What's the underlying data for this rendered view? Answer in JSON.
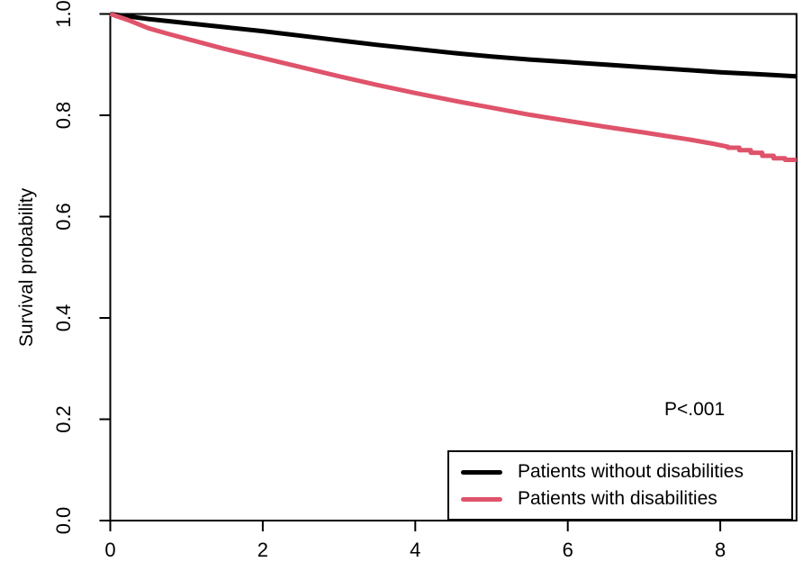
{
  "figure": {
    "background": "#FFFFFF",
    "axis_color": "#000000"
  },
  "chart_data": {
    "type": "line",
    "subtype": "kaplan-meier-survival-curve",
    "title": "",
    "xlabel": "",
    "ylabel": "Survival probability",
    "annotation": "P<.001",
    "xlim": [
      0,
      9.0
    ],
    "ylim": [
      0.0,
      1.0
    ],
    "x_ticks": [
      0,
      2,
      4,
      6,
      8
    ],
    "y_ticks": [
      0.0,
      0.2,
      0.4,
      0.6,
      0.8,
      1.0
    ],
    "grid": false,
    "box": true,
    "legend_position": "bottom-right",
    "series": [
      {
        "name": "Patients without disabilities",
        "color": "#000000",
        "points": [
          [
            0,
            1.0
          ],
          [
            0.15,
            0.997
          ],
          [
            0.5,
            0.99
          ],
          [
            1,
            0.982
          ],
          [
            1.5,
            0.974
          ],
          [
            2,
            0.966
          ],
          [
            2.5,
            0.957
          ],
          [
            3,
            0.948
          ],
          [
            3.5,
            0.939
          ],
          [
            4,
            0.931
          ],
          [
            4.5,
            0.923
          ],
          [
            5,
            0.916
          ],
          [
            5.5,
            0.91
          ],
          [
            6,
            0.905
          ],
          [
            6.5,
            0.9
          ],
          [
            7,
            0.895
          ],
          [
            7.5,
            0.89
          ],
          [
            8,
            0.885
          ],
          [
            8.5,
            0.881
          ],
          [
            9.0,
            0.877
          ]
        ]
      },
      {
        "name": "Patients with disabilities",
        "color": "#DF536B",
        "points": [
          [
            0,
            1.0
          ],
          [
            0.25,
            0.987
          ],
          [
            0.5,
            0.972
          ],
          [
            0.75,
            0.961
          ],
          [
            1,
            0.951
          ],
          [
            1.5,
            0.931
          ],
          [
            2,
            0.913
          ],
          [
            2.5,
            0.895
          ],
          [
            3,
            0.877
          ],
          [
            3.5,
            0.86
          ],
          [
            4,
            0.844
          ],
          [
            4.5,
            0.829
          ],
          [
            5,
            0.815
          ],
          [
            5.5,
            0.801
          ],
          [
            6,
            0.789
          ],
          [
            6.5,
            0.777
          ],
          [
            7,
            0.766
          ],
          [
            7.3,
            0.759
          ],
          [
            7.6,
            0.752
          ],
          [
            7.9,
            0.744
          ],
          [
            8.1,
            0.738
          ],
          [
            8.1,
            0.736
          ],
          [
            8.25,
            0.736
          ],
          [
            8.25,
            0.731
          ],
          [
            8.4,
            0.731
          ],
          [
            8.4,
            0.726
          ],
          [
            8.55,
            0.726
          ],
          [
            8.55,
            0.72
          ],
          [
            8.7,
            0.72
          ],
          [
            8.7,
            0.715
          ],
          [
            8.85,
            0.715
          ],
          [
            8.85,
            0.712
          ],
          [
            9.0,
            0.712
          ]
        ]
      }
    ]
  },
  "legend": {
    "items": [
      {
        "label": "Patients without disabilities",
        "color": "#000000"
      },
      {
        "label": "Patients with disabilities",
        "color": "#DF536B"
      }
    ]
  }
}
